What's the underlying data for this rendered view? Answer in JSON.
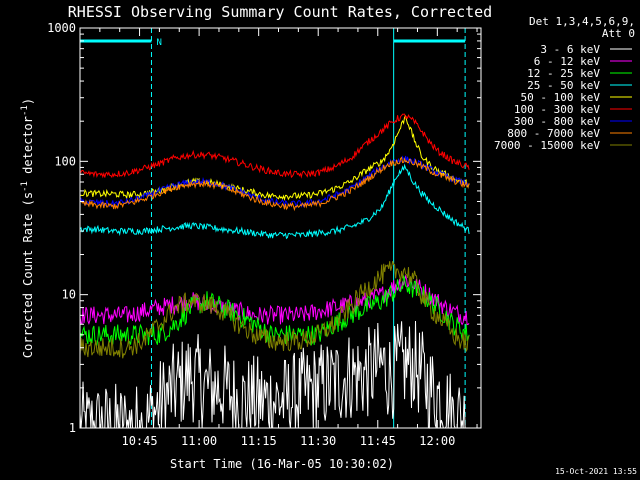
{
  "chart_data": {
    "type": "line",
    "title": "RHESSI Observing Summary Count Rates, Corrected",
    "ylabel_main": "Corrected Count Rate (s",
    "ylabel_sup1": "-1",
    "ylabel_mid": " detector",
    "ylabel_sup2": "-1",
    "ylabel_end": ")",
    "xlabel": "Start Time (16-Mar-05 10:30:02)",
    "timestamp": "15-Oct-2021 13:55",
    "legend_header": [
      "Det 1,3,4,5,6,9,",
      "Att 0"
    ],
    "scale": "log",
    "ylim": [
      1,
      1000
    ],
    "xlim_minutes": [
      0,
      101
    ],
    "x_ticks": [
      {
        "label": "10:45",
        "t": 15
      },
      {
        "label": "11:00",
        "t": 30
      },
      {
        "label": "11:15",
        "t": 45
      },
      {
        "label": "11:30",
        "t": 60
      },
      {
        "label": "11:45",
        "t": 75
      },
      {
        "label": "12:00",
        "t": 90
      }
    ],
    "y_ticks": [
      {
        "label": "1",
        "v": 1
      },
      {
        "label": "10",
        "v": 10
      },
      {
        "label": "100",
        "v": 100
      },
      {
        "label": "1000",
        "v": 1000
      }
    ],
    "annotation_n": "N",
    "night_intervals_minutes": [
      [
        0,
        18
      ],
      [
        79,
        97
      ]
    ],
    "x_minutes": [
      0,
      4,
      8,
      12,
      16,
      20,
      24,
      28,
      32,
      36,
      40,
      44,
      48,
      52,
      56,
      60,
      64,
      68,
      72,
      76,
      78,
      80,
      82,
      84,
      86,
      88,
      90,
      92,
      94,
      96,
      98
    ],
    "series": [
      {
        "name": "3 - 6 keV",
        "color": "#ffffff",
        "values": [
          1,
          1,
          1,
          1,
          1,
          1.5,
          2,
          2.5,
          2,
          2,
          1.6,
          1.6,
          1.6,
          1.6,
          1.8,
          2,
          2.2,
          2.5,
          2.5,
          3,
          2.5,
          2.8,
          3,
          3,
          2.5,
          2,
          1.8,
          1.5,
          1.2,
          1.2,
          1
        ]
      },
      {
        "name": "6 - 12 keV",
        "color": "#ff00ff",
        "values": [
          7,
          7,
          7,
          7,
          7.5,
          8,
          8.5,
          9,
          8.5,
          8,
          7.5,
          7,
          7,
          7,
          7,
          7.5,
          8,
          8.5,
          9,
          10,
          11,
          12,
          13,
          12,
          11,
          10,
          9,
          8,
          7.5,
          7,
          7
        ]
      },
      {
        "name": "12 - 25 keV",
        "color": "#00ff00",
        "values": [
          5,
          5,
          5,
          5,
          5,
          5,
          6,
          8,
          9,
          8,
          7,
          6,
          5,
          5,
          5,
          5,
          6,
          7,
          8,
          9,
          10,
          11,
          12,
          11,
          10,
          9,
          8,
          7,
          6,
          5.5,
          5
        ]
      },
      {
        "name": "25 - 50 keV",
        "color": "#00ffff",
        "values": [
          31,
          31,
          30,
          30,
          30,
          31,
          32,
          33,
          32,
          31,
          30,
          29,
          28,
          28,
          28,
          29,
          30,
          32,
          36,
          45,
          60,
          80,
          90,
          70,
          58,
          50,
          45,
          40,
          36,
          33,
          30
        ]
      },
      {
        "name": "50 - 100 keV",
        "color": "#ffff00",
        "values": [
          58,
          57,
          57,
          56,
          57,
          60,
          66,
          70,
          70,
          66,
          62,
          58,
          55,
          55,
          55,
          57,
          62,
          70,
          85,
          100,
          120,
          160,
          220,
          150,
          110,
          95,
          85,
          80,
          75,
          70,
          68
        ]
      },
      {
        "name": "100 - 300 keV",
        "color": "#ff0000",
        "values": [
          82,
          80,
          80,
          82,
          88,
          96,
          106,
          112,
          112,
          106,
          98,
          90,
          84,
          80,
          80,
          82,
          90,
          105,
          135,
          170,
          190,
          210,
          220,
          200,
          170,
          140,
          120,
          110,
          100,
          95,
          90
        ]
      },
      {
        "name": "300 - 800 keV",
        "color": "#0000ff",
        "values": [
          50,
          49,
          48,
          50,
          54,
          60,
          66,
          70,
          70,
          66,
          60,
          54,
          50,
          48,
          48,
          50,
          55,
          62,
          75,
          90,
          98,
          102,
          104,
          100,
          94,
          88,
          82,
          78,
          74,
          70,
          68
        ]
      },
      {
        "name": "800 - 7000 keV",
        "color": "#ff8000",
        "values": [
          48,
          47,
          46,
          48,
          52,
          58,
          64,
          68,
          68,
          64,
          58,
          52,
          48,
          46,
          46,
          48,
          53,
          60,
          72,
          88,
          96,
          100,
          102,
          98,
          92,
          86,
          80,
          76,
          72,
          68,
          66
        ]
      },
      {
        "name": "7000 - 15000 keV",
        "color": "#808000",
        "values": [
          4,
          4,
          4,
          4,
          4.5,
          6,
          8,
          9,
          8.5,
          7.5,
          6,
          5,
          4.5,
          4.5,
          4.5,
          5,
          6,
          8,
          11,
          14,
          15,
          15,
          15,
          13,
          10,
          8,
          7,
          6,
          5,
          4.5,
          4.2
        ]
      }
    ]
  }
}
